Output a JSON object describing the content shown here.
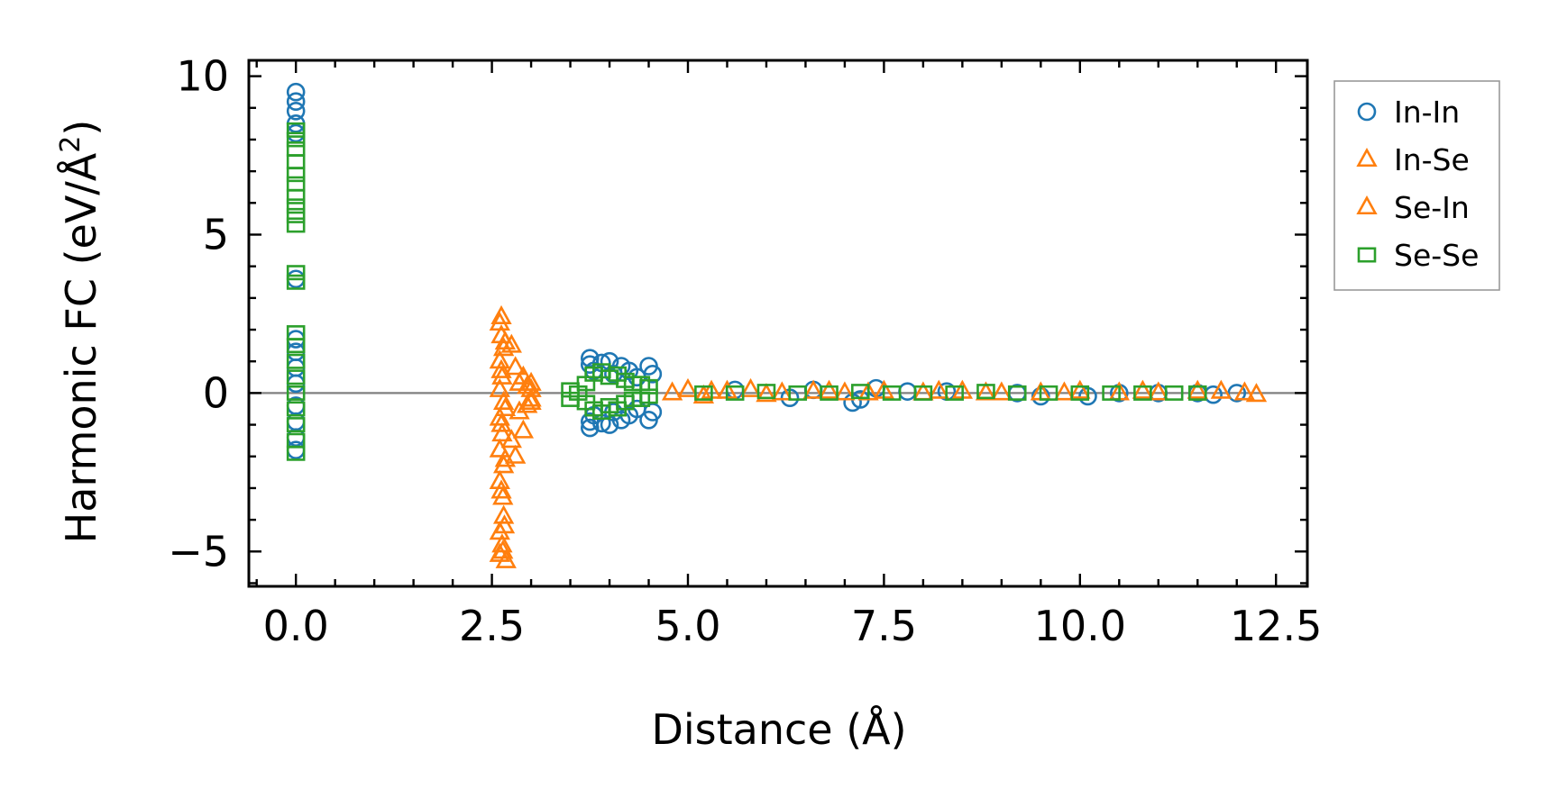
{
  "chart_data": {
    "type": "scatter",
    "title": "",
    "xlabel": "Distance (Å)",
    "ylabel_main": "Harmonic FC (eV/Å",
    "ylabel_sup": "2",
    "ylabel_close": ")",
    "xlim": [
      -0.6,
      12.9
    ],
    "ylim": [
      -6.1,
      10.5
    ],
    "x_ticks": [
      0.0,
      2.5,
      5.0,
      7.5,
      10.0,
      12.5
    ],
    "x_tick_labels": [
      "0.0",
      "2.5",
      "5.0",
      "7.5",
      "10.0",
      "12.5"
    ],
    "y_ticks": [
      -5,
      0,
      5,
      10
    ],
    "y_tick_labels": [
      "−5",
      "0",
      "5",
      "10"
    ],
    "zero_line": true,
    "grid": false,
    "legend_position": "outside right, top",
    "series": [
      {
        "name": "In-In",
        "marker": "circle",
        "color": "#1f77b4",
        "points": [
          [
            0,
            9.5
          ],
          [
            0,
            9.2
          ],
          [
            0,
            8.9
          ],
          [
            0,
            8.5
          ],
          [
            0,
            8.2
          ],
          [
            0,
            3.6
          ],
          [
            0,
            1.7
          ],
          [
            0,
            1.3
          ],
          [
            0,
            0.8
          ],
          [
            0,
            0.3
          ],
          [
            0,
            -0.4
          ],
          [
            0,
            -0.9
          ],
          [
            0,
            -1.4
          ],
          [
            0,
            -1.8
          ],
          [
            3.75,
            1.1
          ],
          [
            3.75,
            0.9
          ],
          [
            3.75,
            -0.9
          ],
          [
            3.75,
            -1.1
          ],
          [
            3.8,
            0.7
          ],
          [
            3.8,
            -0.7
          ],
          [
            3.9,
            0.95
          ],
          [
            3.9,
            -0.95
          ],
          [
            4.0,
            1.0
          ],
          [
            4.0,
            -1.0
          ],
          [
            4.05,
            0.6
          ],
          [
            4.05,
            -0.6
          ],
          [
            4.15,
            0.85
          ],
          [
            4.15,
            -0.85
          ],
          [
            4.25,
            0.7
          ],
          [
            4.25,
            -0.7
          ],
          [
            4.35,
            0.5
          ],
          [
            4.35,
            -0.5
          ],
          [
            4.5,
            0.85
          ],
          [
            4.5,
            -0.85
          ],
          [
            4.55,
            0.6
          ],
          [
            4.55,
            -0.6
          ],
          [
            5.6,
            0.1
          ],
          [
            6.3,
            -0.15
          ],
          [
            6.6,
            0.1
          ],
          [
            7.1,
            -0.3
          ],
          [
            7.2,
            -0.2
          ],
          [
            7.4,
            0.15
          ],
          [
            7.8,
            0.05
          ],
          [
            8.3,
            0.05
          ],
          [
            9.2,
            0.0
          ],
          [
            9.5,
            -0.1
          ],
          [
            10.1,
            -0.1
          ],
          [
            10.5,
            0.0
          ],
          [
            11.0,
            0.0
          ],
          [
            11.5,
            0.0
          ],
          [
            11.7,
            -0.05
          ],
          [
            12.0,
            0.0
          ]
        ]
      },
      {
        "name": "In-Se",
        "marker": "triangle",
        "color": "#ff7f0e",
        "points": [
          [
            2.6,
            2.2
          ],
          [
            2.62,
            1.8
          ],
          [
            2.65,
            1.4
          ],
          [
            2.6,
            1.0
          ],
          [
            2.63,
            0.5
          ],
          [
            2.6,
            0.1
          ],
          [
            2.65,
            -0.3
          ],
          [
            2.6,
            -0.8
          ],
          [
            2.63,
            -1.3
          ],
          [
            2.6,
            -1.8
          ],
          [
            2.65,
            -2.3
          ],
          [
            2.6,
            -2.8
          ],
          [
            2.62,
            -3.1
          ],
          [
            2.65,
            -3.9
          ],
          [
            2.6,
            -4.4
          ],
          [
            2.63,
            -4.8
          ],
          [
            2.6,
            -5.1
          ],
          [
            2.68,
            -5.3
          ],
          [
            2.75,
            1.5
          ],
          [
            2.75,
            -1.5
          ],
          [
            2.8,
            0.8
          ],
          [
            2.8,
            -2.0
          ],
          [
            2.85,
            0.3
          ],
          [
            2.85,
            -0.6
          ],
          [
            2.9,
            0.5
          ],
          [
            2.9,
            -1.2
          ],
          [
            2.95,
            0.2
          ],
          [
            2.95,
            -0.4
          ],
          [
            3.0,
            0.1
          ],
          [
            3.0,
            -0.2
          ],
          [
            5.0,
            0.1
          ],
          [
            5.2,
            -0.1
          ],
          [
            5.5,
            0.05
          ],
          [
            5.8,
            0.1
          ],
          [
            6.2,
            0.0
          ],
          [
            6.6,
            0.05
          ],
          [
            7.0,
            0.0
          ],
          [
            7.5,
            0.05
          ],
          [
            8.0,
            0.0
          ],
          [
            8.5,
            0.05
          ],
          [
            9.0,
            0.0
          ],
          [
            9.5,
            0.0
          ],
          [
            10.0,
            0.05
          ],
          [
            10.5,
            0.0
          ],
          [
            11.0,
            0.0
          ],
          [
            11.5,
            0.05
          ]
        ]
      },
      {
        "name": "Se-In",
        "marker": "triangle",
        "color": "#ff7f0e",
        "points": [
          [
            2.62,
            2.4
          ],
          [
            2.67,
            1.6
          ],
          [
            2.62,
            0.7
          ],
          [
            2.67,
            -0.5
          ],
          [
            2.62,
            -1.0
          ],
          [
            2.67,
            -2.1
          ],
          [
            2.64,
            -3.3
          ],
          [
            2.66,
            -4.2
          ],
          [
            2.64,
            -5.0
          ],
          [
            3.0,
            0.3
          ],
          [
            3.0,
            -0.3
          ],
          [
            4.8,
            0.0
          ],
          [
            5.3,
            0.05
          ],
          [
            6.0,
            -0.05
          ],
          [
            6.8,
            0.05
          ],
          [
            7.3,
            0.0
          ],
          [
            8.2,
            0.05
          ],
          [
            8.8,
            0.0
          ],
          [
            9.8,
            0.0
          ],
          [
            10.8,
            0.05
          ],
          [
            11.8,
            0.05
          ],
          [
            12.1,
            0.0
          ],
          [
            12.25,
            -0.05
          ]
        ]
      },
      {
        "name": "Se-Se",
        "marker": "square",
        "color": "#2ca02c",
        "points": [
          [
            0,
            8.3
          ],
          [
            0,
            8.0
          ],
          [
            0,
            7.7
          ],
          [
            0,
            7.3
          ],
          [
            0,
            6.9
          ],
          [
            0,
            6.6
          ],
          [
            0,
            6.2
          ],
          [
            0,
            5.9
          ],
          [
            0,
            5.6
          ],
          [
            0,
            5.3
          ],
          [
            0,
            3.8
          ],
          [
            0,
            3.5
          ],
          [
            0,
            1.9
          ],
          [
            0,
            1.5
          ],
          [
            0,
            1.0
          ],
          [
            0,
            0.5
          ],
          [
            0,
            0.0
          ],
          [
            0,
            -0.5
          ],
          [
            0,
            -1.0
          ],
          [
            0,
            -1.5
          ],
          [
            0,
            -1.9
          ],
          [
            3.5,
            0.1
          ],
          [
            3.5,
            -0.2
          ],
          [
            3.6,
            0.0
          ],
          [
            3.7,
            0.3
          ],
          [
            3.7,
            -0.3
          ],
          [
            3.8,
            0.6
          ],
          [
            3.8,
            -0.5
          ],
          [
            3.9,
            0.7
          ],
          [
            3.9,
            -0.6
          ],
          [
            4.0,
            0.5
          ],
          [
            4.0,
            -0.4
          ],
          [
            4.1,
            0.6
          ],
          [
            4.1,
            -0.5
          ],
          [
            4.2,
            0.4
          ],
          [
            4.2,
            -0.3
          ],
          [
            4.3,
            0.3
          ],
          [
            4.3,
            -0.2
          ],
          [
            4.4,
            0.3
          ],
          [
            4.4,
            -0.2
          ],
          [
            4.5,
            0.2
          ],
          [
            4.5,
            -0.1
          ],
          [
            5.2,
            0.0
          ],
          [
            5.6,
            0.0
          ],
          [
            6.0,
            0.05
          ],
          [
            6.4,
            0.0
          ],
          [
            6.8,
            0.0
          ],
          [
            7.2,
            0.05
          ],
          [
            7.6,
            0.0
          ],
          [
            8.0,
            0.0
          ],
          [
            8.4,
            0.0
          ],
          [
            8.8,
            0.05
          ],
          [
            9.2,
            0.0
          ],
          [
            9.6,
            0.0
          ],
          [
            10.0,
            0.0
          ],
          [
            10.4,
            0.0
          ],
          [
            10.8,
            0.0
          ],
          [
            11.2,
            0.0
          ],
          [
            11.5,
            0.0
          ]
        ]
      }
    ]
  }
}
